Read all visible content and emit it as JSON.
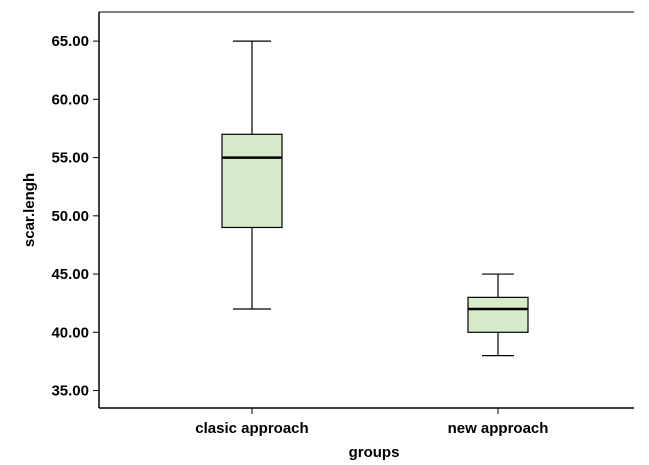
{
  "chart_data": {
    "type": "boxplot",
    "xlabel": "groups",
    "ylabel": "scar.lengh",
    "ylim": [
      33.5,
      67.5
    ],
    "yticks": [
      35,
      40,
      45,
      50,
      55,
      60,
      65
    ],
    "ytick_labels": [
      "35.00",
      "40.00",
      "45.00",
      "50.00",
      "55.00",
      "60.00",
      "65.00"
    ],
    "categories": [
      "clasic approach",
      "new approach"
    ],
    "boxes": [
      {
        "min": 42,
        "q1": 49,
        "median": 55,
        "q3": 57,
        "max": 65
      },
      {
        "min": 38,
        "q1": 40,
        "median": 42,
        "q3": 43,
        "max": 45
      }
    ],
    "box_fill": "#d6ebc9",
    "grid": false
  }
}
